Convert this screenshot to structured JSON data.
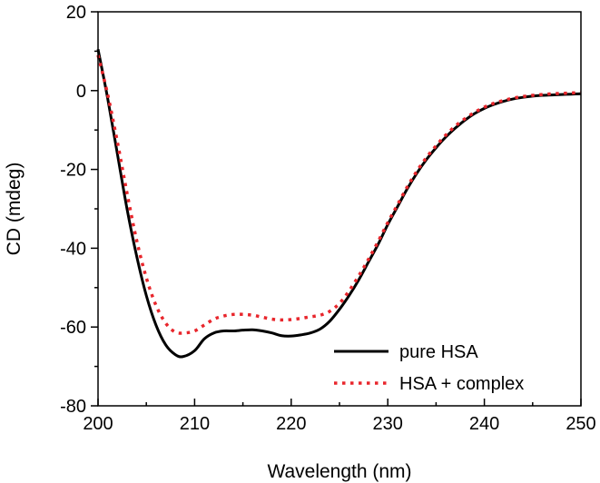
{
  "chart_data": {
    "type": "line",
    "title": "",
    "xlabel": "Wavelength (nm)",
    "ylabel": "CD (mdeg)",
    "xlim": [
      200,
      250
    ],
    "ylim": [
      -80,
      20
    ],
    "xticks": [
      200,
      210,
      220,
      230,
      240,
      250
    ],
    "yticks": [
      -80,
      -60,
      -40,
      -20,
      0,
      20
    ],
    "xtick_labels": [
      "200",
      "210",
      "220",
      "230",
      "240",
      "250"
    ],
    "ytick_labels": [
      "-80",
      "-60",
      "-40",
      "-20",
      "0",
      "20"
    ],
    "grid": false,
    "legend_position": "bottom-right",
    "series": [
      {
        "name": "pure HSA",
        "color": "#000000",
        "style": "solid",
        "x": [
          200,
          201,
          202,
          203,
          204,
          205,
          206,
          207,
          208,
          208.8,
          210,
          211,
          212,
          213,
          214,
          215,
          216,
          217,
          218,
          219,
          220,
          221,
          222,
          223,
          224,
          225,
          226,
          227,
          228,
          229,
          230,
          231,
          232,
          233,
          234,
          235,
          236,
          237,
          238,
          239,
          240,
          241,
          242,
          243,
          244,
          245,
          246,
          247,
          248,
          249,
          250
        ],
        "y": [
          10.5,
          -2,
          -16,
          -30,
          -42,
          -52,
          -59.5,
          -64.5,
          -67,
          -67.5,
          -66,
          -63,
          -61.5,
          -61,
          -61,
          -60.8,
          -60.7,
          -61,
          -61.5,
          -62.2,
          -62.3,
          -62,
          -61.5,
          -60.5,
          -58.5,
          -55.5,
          -52,
          -48,
          -43.5,
          -39,
          -34,
          -29.5,
          -25,
          -21,
          -17.5,
          -14.5,
          -11.8,
          -9.5,
          -7.5,
          -5.8,
          -4.5,
          -3.5,
          -2.7,
          -2.1,
          -1.7,
          -1.4,
          -1.2,
          -1.1,
          -1,
          -0.9,
          -0.8
        ]
      },
      {
        "name": "HSA + complex",
        "color": "#e8262c",
        "style": "dotted",
        "x": [
          200,
          201,
          202,
          203,
          204,
          205,
          206,
          207,
          208,
          209,
          210,
          211,
          212,
          213,
          214,
          215,
          216,
          217,
          218,
          219,
          220,
          221,
          222,
          223,
          224,
          225,
          226,
          227,
          228,
          229,
          230,
          231,
          232,
          233,
          234,
          235,
          236,
          237,
          238,
          239,
          240,
          241,
          242,
          243,
          244,
          245,
          246,
          247,
          248,
          249,
          250
        ],
        "y": [
          9,
          -1,
          -13,
          -26,
          -38,
          -47.5,
          -54.5,
          -59,
          -61.3,
          -61.5,
          -61,
          -59.5,
          -58,
          -57.2,
          -56.8,
          -56.8,
          -57,
          -57.5,
          -58,
          -58.2,
          -58.1,
          -57.8,
          -57.4,
          -57,
          -56,
          -54,
          -50.8,
          -47,
          -42.8,
          -38.3,
          -33.5,
          -29,
          -24.5,
          -20.5,
          -17,
          -14,
          -11.3,
          -9,
          -7.1,
          -5.5,
          -4.2,
          -3.2,
          -2.5,
          -1.9,
          -1.5,
          -1.2,
          -1,
          -0.8,
          -0.7,
          -0.6,
          -0.5
        ]
      }
    ]
  }
}
